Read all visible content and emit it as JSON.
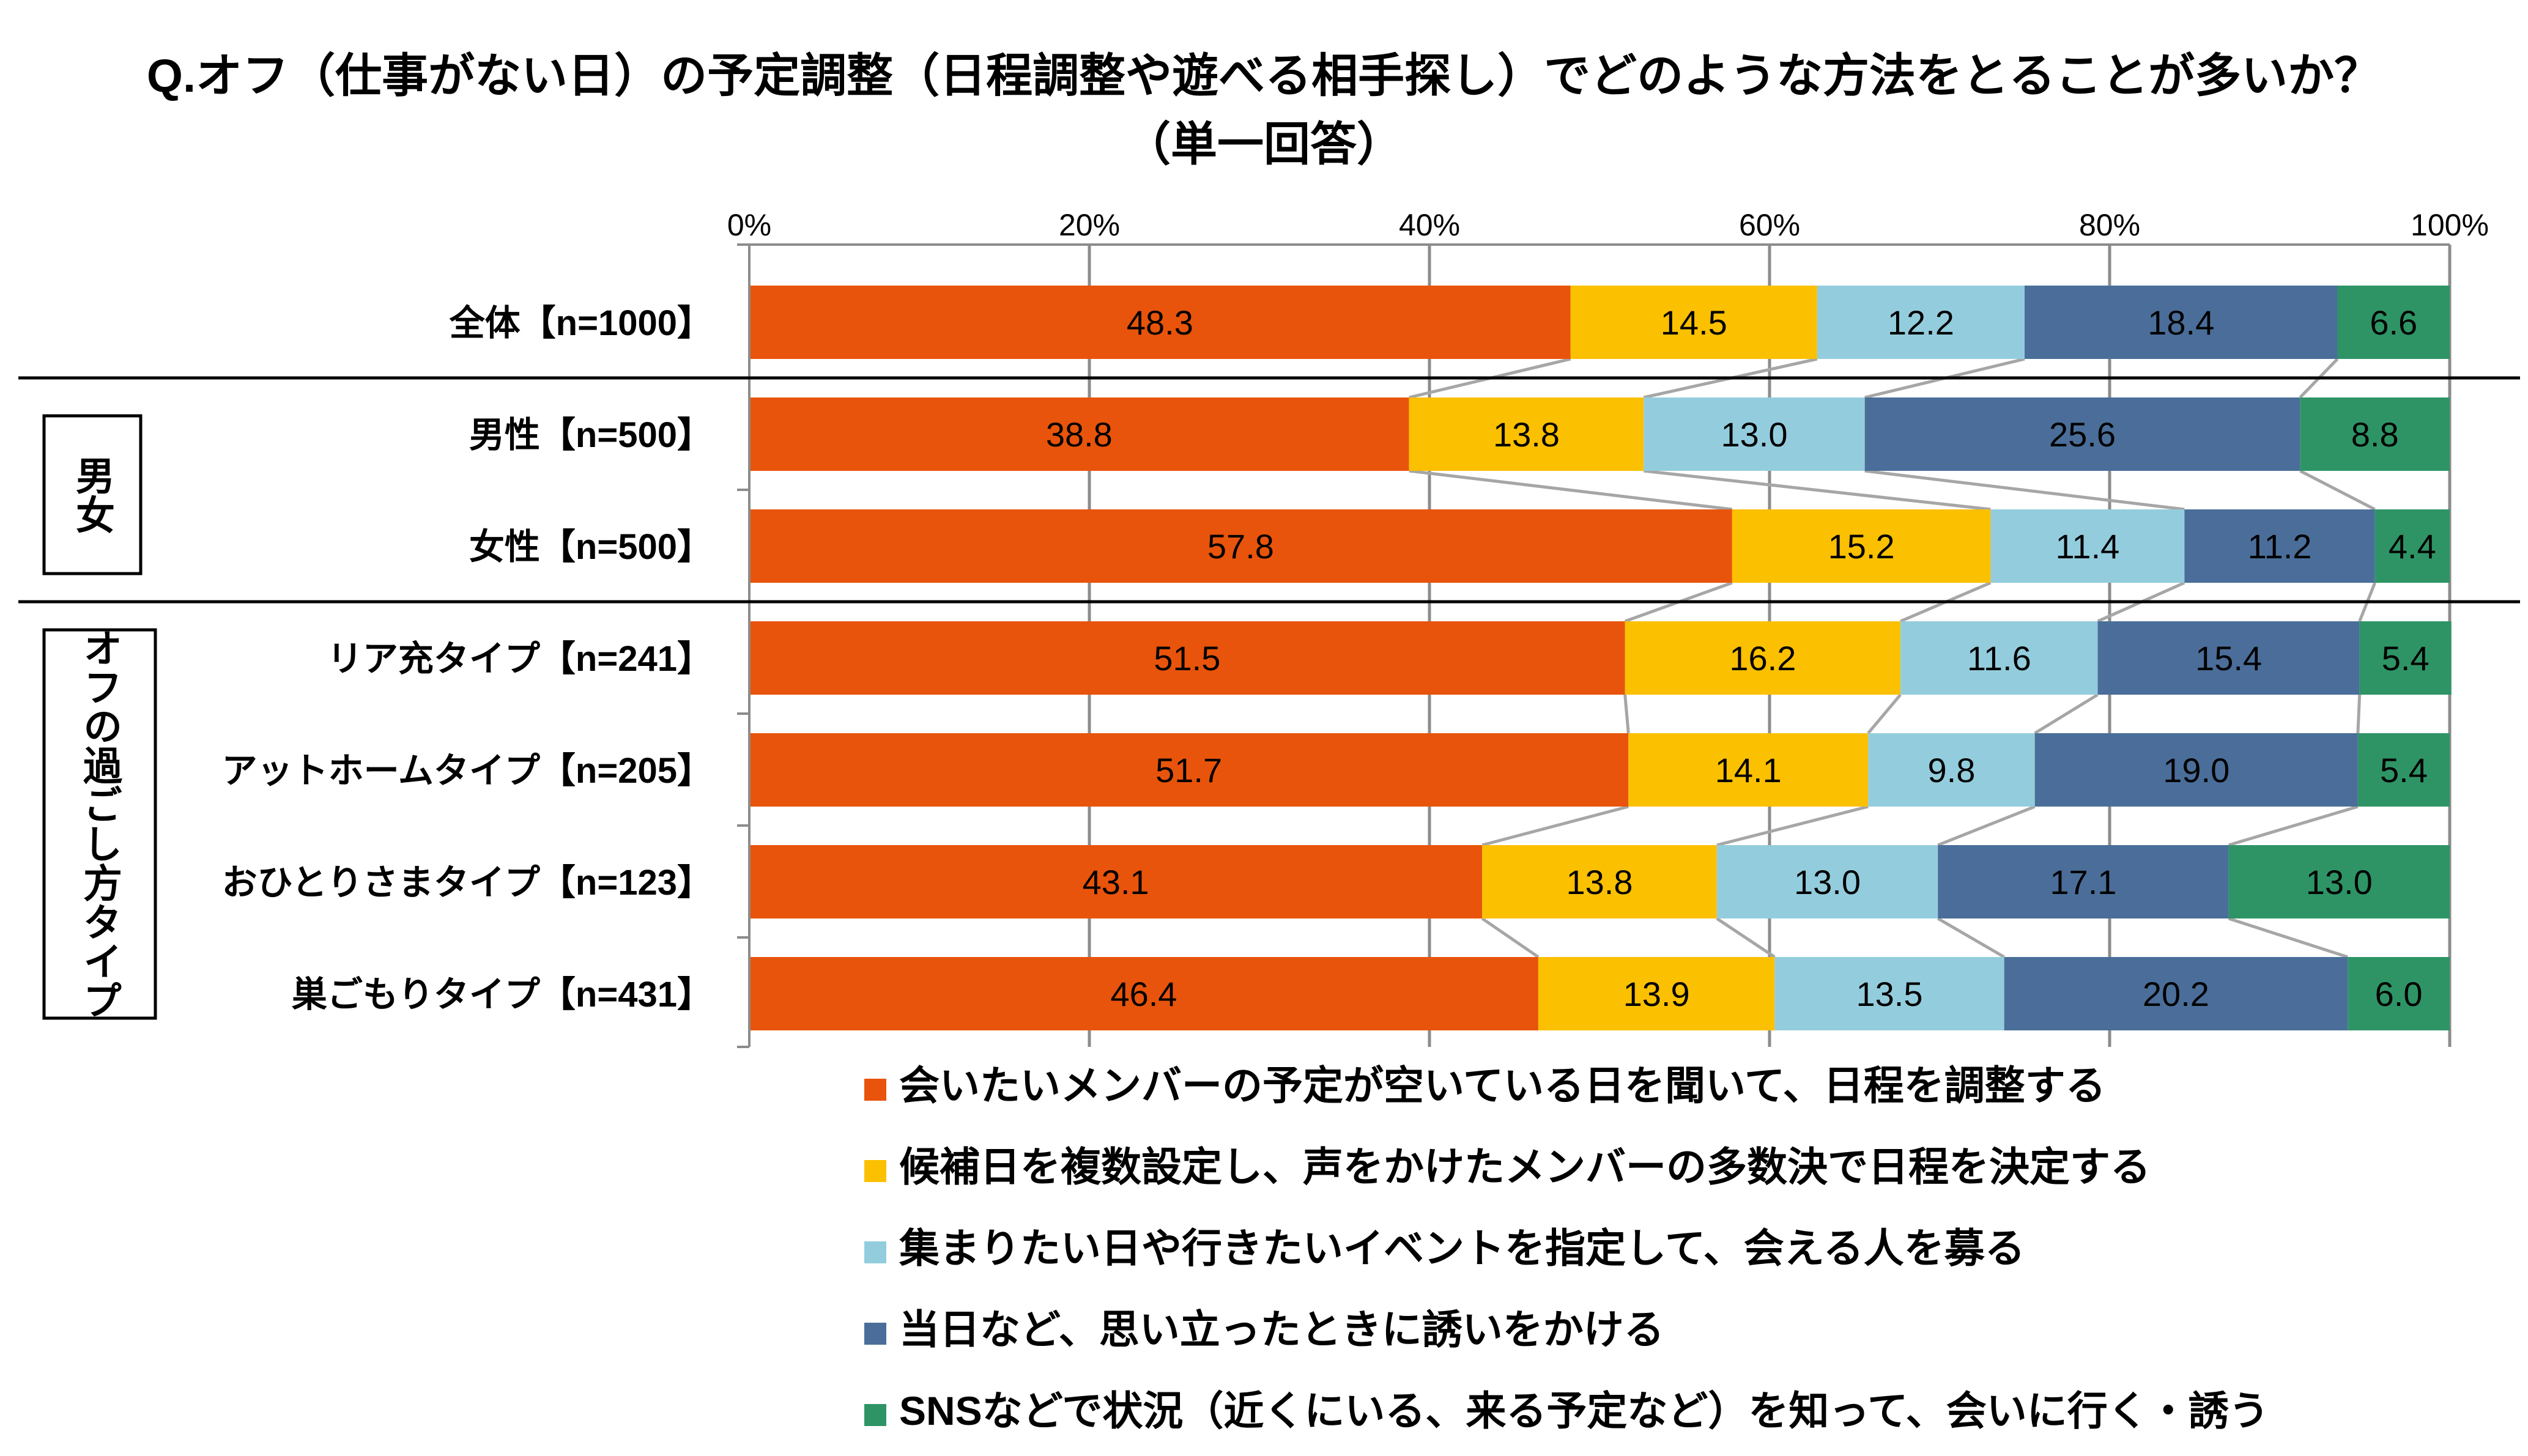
{
  "title": {
    "line1": "Q.オフ（仕事がない日）の予定調整（日程調整や遊べる相手探し）でどのような方法をとることが多いか？",
    "line2": "（単一回答）"
  },
  "groups": [
    {
      "label": "男女"
    },
    {
      "label": "オフの過ごし方タイプ"
    }
  ],
  "chart_data": {
    "type": "bar",
    "orientation": "horizontal",
    "stacked": "100%",
    "xlim": [
      0,
      100
    ],
    "ticks": [
      "0%",
      "20%",
      "40%",
      "60%",
      "80%",
      "100%"
    ],
    "tick_values": [
      0,
      20,
      40,
      60,
      80,
      100
    ],
    "grid": true,
    "legend_position": "bottom",
    "categories": [
      "全体【n=1000】",
      "男性【n=500】",
      "女性【n=500】",
      "リア充タイプ【n=241】",
      "アットホームタイプ【n=205】",
      "おひとりさまタイプ【n=123】",
      "巣ごもりタイプ【n=431】"
    ],
    "series": [
      {
        "name": "会いたいメンバーの予定が空いている日を聞いて、日程を調整する",
        "color": "#E8540B",
        "values": [
          48.3,
          38.8,
          57.8,
          51.5,
          51.7,
          43.1,
          46.4
        ],
        "labels": [
          "48.3",
          "38.8",
          "57.8",
          "51.5",
          "51.7",
          "43.1",
          "46.4"
        ]
      },
      {
        "name": "候補日を複数設定し、声をかけたメンバーの多数決で日程を決定する",
        "color": "#FBC000",
        "values": [
          14.5,
          13.8,
          15.2,
          16.2,
          14.1,
          13.8,
          13.9
        ],
        "labels": [
          "14.5",
          "13.8",
          "15.2",
          "16.2",
          "14.1",
          "13.8",
          "13.9"
        ]
      },
      {
        "name": "集まりたい日や行きたいイベントを指定して、会える人を募る",
        "color": "#93CDDD",
        "values": [
          12.2,
          13.0,
          11.4,
          11.6,
          9.8,
          13.0,
          13.5
        ],
        "labels": [
          "12.2",
          "13.0",
          "11.4",
          "11.6",
          "9.8",
          "13.0",
          "13.5"
        ]
      },
      {
        "name": "当日など、思い立ったときに誘いをかける",
        "color": "#4A6E99",
        "values": [
          18.4,
          25.6,
          11.2,
          15.4,
          19.0,
          17.1,
          20.2
        ],
        "labels": [
          "18.4",
          "25.6",
          "11.2",
          "15.4",
          "19.0",
          "17.1",
          "20.2"
        ]
      },
      {
        "name": "SNSなどで状況（近くにいる、来る予定など）を知って、会いに行く・誘う",
        "color": "#2E9466",
        "values": [
          6.6,
          8.8,
          4.4,
          5.4,
          5.4,
          13.0,
          6.0
        ],
        "labels": [
          "6.6",
          "8.8",
          "4.4",
          "5.4",
          "5.4",
          "13.0",
          "6.0"
        ]
      }
    ]
  }
}
